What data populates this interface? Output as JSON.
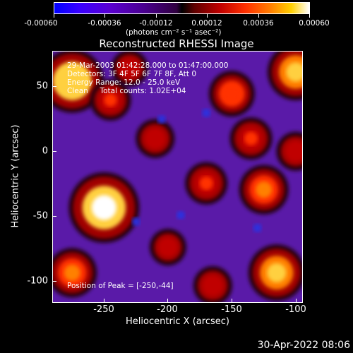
{
  "colorbar": {
    "ticks": [
      "-0.00060",
      "-0.00036",
      "-0.00012",
      "0.00012",
      "0.00036",
      "0.00060"
    ],
    "unit": "(photons cm⁻² s⁻¹ asec⁻²)"
  },
  "chart_data": {
    "type": "heatmap",
    "title": "Reconstructed RHESSI Image",
    "xlabel": "Heliocentric X (arcsec)",
    "ylabel": "Heliocentric Y (arcsec)",
    "xlim": [
      -290,
      -95
    ],
    "ylim": [
      -118,
      78
    ],
    "xticks": [
      -250,
      -200,
      -150,
      -100
    ],
    "yticks": [
      -100,
      -50,
      0,
      50
    ],
    "zlim": [
      -0.0006,
      0.0006
    ],
    "colormap": "rainbow-3-like (blue-purple-black-red-orange-yellow-white)",
    "info_lines": [
      "29-Mar-2003 01:42:28.000 to 01:47:00.000",
      "Detectors: 3F 4F 5F 6F 7F 8F, Att 0",
      "Energy Range: 12.0 - 25.0 keV",
      "Clean     Total counts: 1.02E+04"
    ],
    "peak_label": "Position of Peak = [-250,-44]",
    "peak_position": [
      -250,
      -44
    ],
    "blobs": [
      {
        "x": -250,
        "y": -44,
        "value": 0.0006
      },
      {
        "x": -275,
        "y": 55,
        "value": 0.0005
      },
      {
        "x": -100,
        "y": 62,
        "value": 0.0004
      },
      {
        "x": -115,
        "y": -95,
        "value": 0.0004
      },
      {
        "x": -125,
        "y": -30,
        "value": 0.0003
      },
      {
        "x": -275,
        "y": -95,
        "value": 0.0003
      },
      {
        "x": -150,
        "y": 45,
        "value": 0.00025
      },
      {
        "x": -170,
        "y": -25,
        "value": 0.0002
      },
      {
        "x": -210,
        "y": 10,
        "value": 0.00015
      },
      {
        "x": -245,
        "y": 40,
        "value": 0.00018
      },
      {
        "x": -135,
        "y": 10,
        "value": 0.0002
      },
      {
        "x": -200,
        "y": -75,
        "value": 0.00012
      },
      {
        "x": -230,
        "y": 65,
        "value": 0.00012
      },
      {
        "x": -165,
        "y": -105,
        "value": 0.00015
      },
      {
        "x": -100,
        "y": 0,
        "value": 0.00015
      }
    ]
  },
  "timestamp": "30-Apr-2022 08:06"
}
